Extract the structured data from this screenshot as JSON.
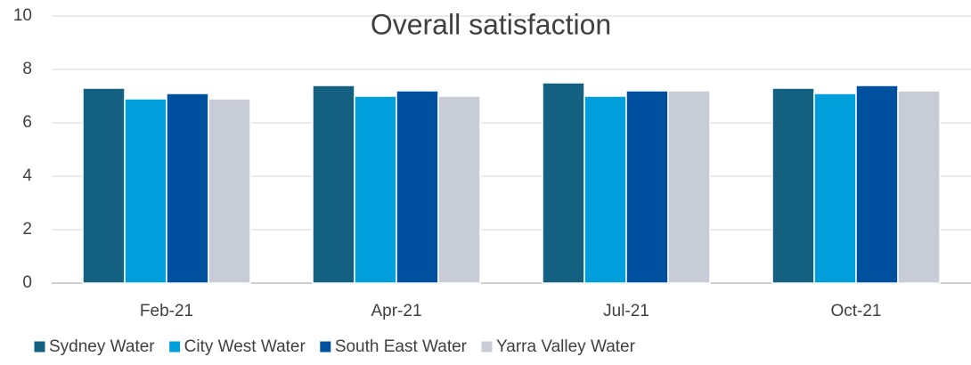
{
  "chart_data": {
    "type": "bar",
    "title": "Overall satisfaction",
    "categories": [
      "Feb-21",
      "Apr-21",
      "Jul-21",
      "Oct-21"
    ],
    "series": [
      {
        "name": "Sydney Water",
        "color": "#136080",
        "values": [
          7.3,
          7.4,
          7.5,
          7.3
        ]
      },
      {
        "name": "City West Water",
        "color": "#009fdb",
        "values": [
          6.9,
          7.0,
          7.0,
          7.1
        ]
      },
      {
        "name": "South East Water",
        "color": "#0050a0",
        "values": [
          7.1,
          7.2,
          7.2,
          7.4
        ]
      },
      {
        "name": "Yarra Valley Water",
        "color": "#c8ccd6",
        "values": [
          6.9,
          7.0,
          7.2,
          7.2
        ]
      }
    ],
    "ylim": [
      0,
      10
    ],
    "yticks": [
      0,
      2,
      4,
      6,
      8,
      10
    ],
    "grid": true,
    "legend": "bottom"
  }
}
